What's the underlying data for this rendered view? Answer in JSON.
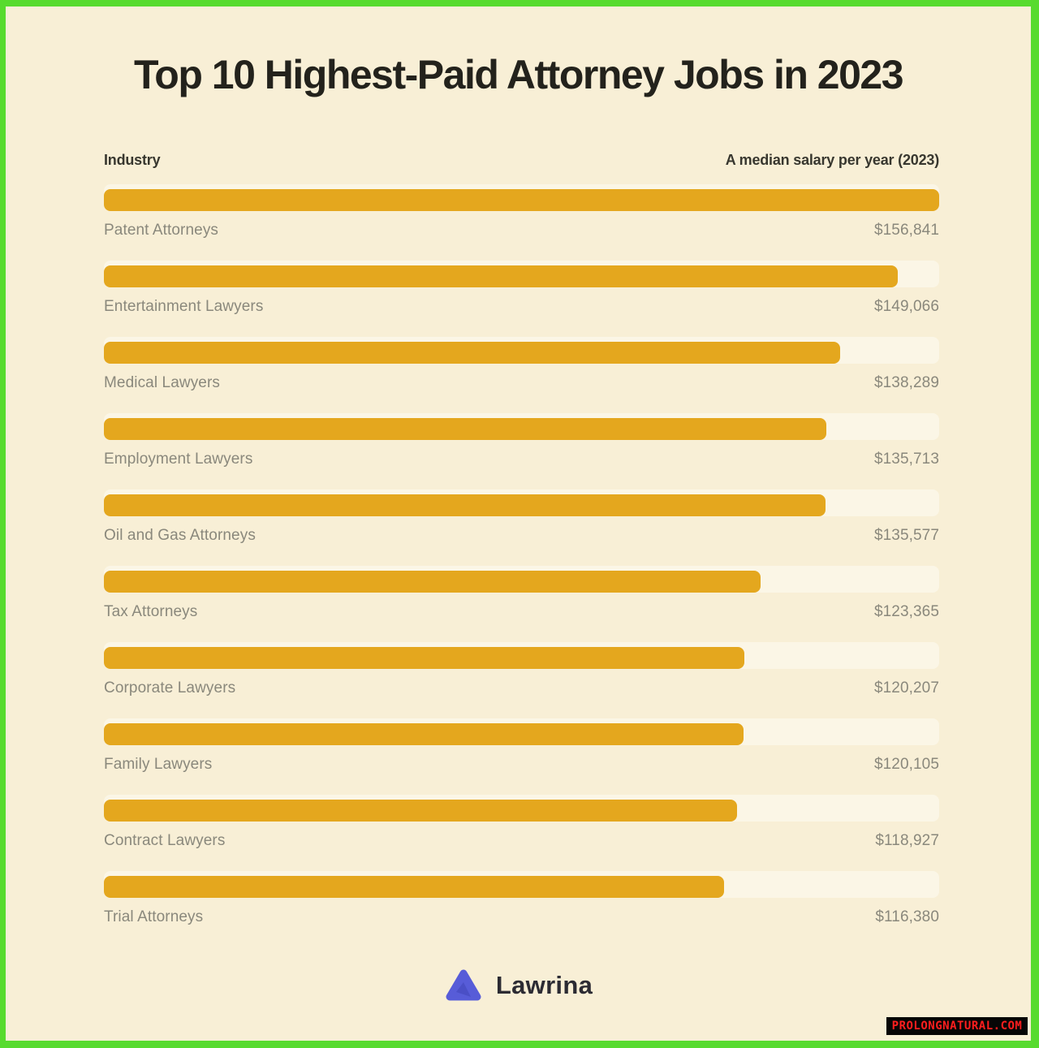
{
  "title": "Top 10 Highest-Paid Attorney Jobs in 2023",
  "columns": {
    "left": "Industry",
    "right": "A median salary per year (2023)"
  },
  "chart_data": {
    "type": "bar",
    "orientation": "horizontal",
    "title": "Top 10 Highest-Paid Attorney Jobs in 2023",
    "xlabel": "A median salary per year (2023)",
    "ylabel": "Industry",
    "categories": [
      "Patent Attorneys",
      "Entertainment Lawyers",
      "Medical Lawyers",
      "Employment Lawyers",
      "Oil and Gas Attorneys",
      "Tax Attorneys",
      "Corporate Lawyers",
      "Family Lawyers",
      "Contract Lawyers",
      "Trial Attorneys"
    ],
    "values": [
      156841,
      149066,
      138289,
      135713,
      135577,
      123365,
      120207,
      120105,
      118927,
      116380
    ],
    "value_labels": [
      "$156,841",
      "$149,066",
      "$138,289",
      "$135,713",
      "$135,577",
      "$123,365",
      "$120,207",
      "$120,105",
      "$118,927",
      "$116,380"
    ],
    "xlim": [
      0,
      156841
    ],
    "grid": false,
    "legend": false,
    "bar_color": "#E4A71E",
    "track_color": "#FBF6E6"
  },
  "footer": {
    "brand": "Lawrina",
    "logo_icon": "mountain-triangle-icon"
  },
  "watermark": {
    "text": "PROLONGNATURAL.COM",
    "text_color": "#FF1E1E",
    "background": "#060606"
  },
  "colors": {
    "frame_border": "#57DB2F",
    "page_background": "#F8EFD6",
    "title_text": "#23221C",
    "header_text": "#38372F",
    "muted_text": "#8A887C",
    "logo_indigo": "#575CD8",
    "logo_indigo_dark": "#4A4FC6"
  }
}
